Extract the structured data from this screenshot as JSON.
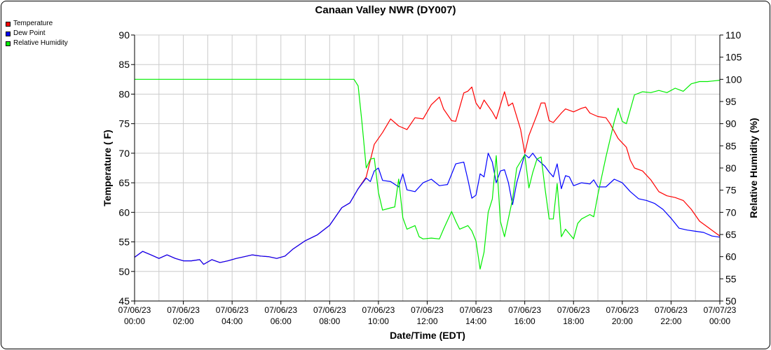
{
  "chart_data": {
    "type": "line",
    "title": "Canaan Valley NWR (DY007)",
    "xlabel": "Date/Time (EDT)",
    "ylabel": "Temperature ( F)",
    "y2label": "Relative Humidity (%)",
    "xlim": [
      "2023-07-06 00:00",
      "2023-07-07 00:00"
    ],
    "ylim": [
      45,
      90
    ],
    "y2lim": [
      50,
      110
    ],
    "y_ticks": [
      45,
      50,
      55,
      60,
      65,
      70,
      75,
      80,
      85,
      90
    ],
    "y2_ticks": [
      50,
      55,
      60,
      65,
      70,
      75,
      80,
      85,
      90,
      95,
      100,
      105,
      110
    ],
    "x_tick_labels": [
      {
        "date": "07/06/23",
        "time": "00:00",
        "hour": 0
      },
      {
        "date": "07/06/23",
        "time": "02:00",
        "hour": 2
      },
      {
        "date": "07/06/23",
        "time": "04:00",
        "hour": 4
      },
      {
        "date": "07/06/23",
        "time": "06:00",
        "hour": 6
      },
      {
        "date": "07/06/23",
        "time": "08:00",
        "hour": 8
      },
      {
        "date": "07/06/23",
        "time": "10:00",
        "hour": 10
      },
      {
        "date": "07/06/23",
        "time": "12:00",
        "hour": 12
      },
      {
        "date": "07/06/23",
        "time": "14:00",
        "hour": 14
      },
      {
        "date": "07/06/23",
        "time": "16:00",
        "hour": 16
      },
      {
        "date": "07/06/23",
        "time": "18:00",
        "hour": 18
      },
      {
        "date": "07/06/23",
        "time": "20:00",
        "hour": 20
      },
      {
        "date": "07/06/23",
        "time": "22:00",
        "hour": 22
      },
      {
        "date": "07/07/23",
        "time": "00:00",
        "hour": 24
      }
    ],
    "grid": true,
    "legend_position": "top-left",
    "series": [
      {
        "name": "Temperature",
        "color": "#ff0000",
        "axis": "left",
        "points": [
          [
            0.0,
            52.4
          ],
          [
            0.33,
            53.4
          ],
          [
            0.67,
            52.8
          ],
          [
            1.0,
            52.2
          ],
          [
            1.33,
            52.8
          ],
          [
            1.67,
            52.2
          ],
          [
            2.0,
            51.8
          ],
          [
            2.33,
            51.8
          ],
          [
            2.67,
            52.0
          ],
          [
            2.83,
            51.2
          ],
          [
            3.17,
            52.0
          ],
          [
            3.5,
            51.5
          ],
          [
            3.83,
            51.8
          ],
          [
            4.17,
            52.2
          ],
          [
            4.5,
            52.5
          ],
          [
            4.83,
            52.8
          ],
          [
            5.17,
            52.6
          ],
          [
            5.5,
            52.5
          ],
          [
            5.83,
            52.2
          ],
          [
            6.17,
            52.6
          ],
          [
            6.5,
            53.8
          ],
          [
            7.0,
            55.2
          ],
          [
            7.5,
            56.2
          ],
          [
            8.0,
            57.8
          ],
          [
            8.5,
            60.8
          ],
          [
            8.83,
            61.6
          ],
          [
            9.17,
            64.0
          ],
          [
            9.5,
            66.0
          ],
          [
            9.83,
            71.5
          ],
          [
            10.17,
            73.5
          ],
          [
            10.5,
            75.8
          ],
          [
            10.83,
            74.6
          ],
          [
            11.17,
            74.0
          ],
          [
            11.5,
            76.0
          ],
          [
            11.83,
            75.8
          ],
          [
            12.17,
            78.2
          ],
          [
            12.5,
            79.5
          ],
          [
            12.67,
            77.5
          ],
          [
            13.0,
            75.5
          ],
          [
            13.17,
            75.4
          ],
          [
            13.5,
            80.2
          ],
          [
            13.67,
            80.5
          ],
          [
            13.83,
            81.2
          ],
          [
            14.0,
            78.5
          ],
          [
            14.17,
            77.5
          ],
          [
            14.33,
            79.0
          ],
          [
            14.67,
            77.0
          ],
          [
            14.83,
            75.8
          ],
          [
            15.17,
            80.4
          ],
          [
            15.33,
            78.0
          ],
          [
            15.5,
            78.5
          ],
          [
            15.83,
            74.0
          ],
          [
            16.0,
            70.0
          ],
          [
            16.17,
            73.0
          ],
          [
            16.5,
            76.5
          ],
          [
            16.67,
            78.5
          ],
          [
            16.83,
            78.5
          ],
          [
            17.0,
            75.5
          ],
          [
            17.17,
            75.2
          ],
          [
            17.5,
            76.8
          ],
          [
            17.67,
            77.5
          ],
          [
            18.0,
            77.0
          ],
          [
            18.33,
            77.6
          ],
          [
            18.5,
            77.8
          ],
          [
            18.67,
            76.8
          ],
          [
            19.0,
            76.2
          ],
          [
            19.33,
            76.0
          ],
          [
            19.5,
            75.0
          ],
          [
            19.83,
            72.5
          ],
          [
            20.17,
            71.0
          ],
          [
            20.33,
            68.8
          ],
          [
            20.5,
            67.5
          ],
          [
            20.83,
            67.0
          ],
          [
            21.17,
            65.5
          ],
          [
            21.5,
            63.5
          ],
          [
            21.83,
            62.8
          ],
          [
            22.17,
            62.5
          ],
          [
            22.5,
            62.0
          ],
          [
            22.83,
            60.5
          ],
          [
            23.17,
            58.5
          ],
          [
            23.5,
            57.5
          ],
          [
            23.83,
            56.5
          ],
          [
            24.0,
            56.0
          ]
        ]
      },
      {
        "name": "Dew Point",
        "color": "#0000ff",
        "axis": "left",
        "points": [
          [
            0.0,
            52.4
          ],
          [
            0.33,
            53.4
          ],
          [
            0.67,
            52.8
          ],
          [
            1.0,
            52.2
          ],
          [
            1.33,
            52.8
          ],
          [
            1.67,
            52.2
          ],
          [
            2.0,
            51.8
          ],
          [
            2.33,
            51.8
          ],
          [
            2.67,
            52.0
          ],
          [
            2.83,
            51.2
          ],
          [
            3.17,
            52.0
          ],
          [
            3.5,
            51.5
          ],
          [
            3.83,
            51.8
          ],
          [
            4.17,
            52.2
          ],
          [
            4.5,
            52.5
          ],
          [
            4.83,
            52.8
          ],
          [
            5.17,
            52.6
          ],
          [
            5.5,
            52.5
          ],
          [
            5.83,
            52.2
          ],
          [
            6.17,
            52.6
          ],
          [
            6.5,
            53.8
          ],
          [
            7.0,
            55.2
          ],
          [
            7.5,
            56.2
          ],
          [
            8.0,
            57.8
          ],
          [
            8.5,
            60.8
          ],
          [
            8.83,
            61.6
          ],
          [
            9.17,
            64.0
          ],
          [
            9.5,
            65.8
          ],
          [
            9.67,
            65.2
          ],
          [
            9.83,
            67.0
          ],
          [
            10.0,
            67.5
          ],
          [
            10.17,
            65.4
          ],
          [
            10.5,
            65.2
          ],
          [
            10.83,
            64.3
          ],
          [
            11.0,
            66.5
          ],
          [
            11.17,
            63.8
          ],
          [
            11.5,
            63.5
          ],
          [
            11.83,
            65.0
          ],
          [
            12.17,
            65.6
          ],
          [
            12.5,
            64.5
          ],
          [
            12.83,
            64.7
          ],
          [
            13.17,
            68.2
          ],
          [
            13.5,
            68.5
          ],
          [
            13.67,
            65.5
          ],
          [
            13.83,
            62.4
          ],
          [
            14.0,
            62.9
          ],
          [
            14.17,
            66.5
          ],
          [
            14.33,
            66.0
          ],
          [
            14.5,
            70.0
          ],
          [
            14.67,
            68.5
          ],
          [
            14.83,
            65.0
          ],
          [
            15.0,
            67.0
          ],
          [
            15.17,
            67.2
          ],
          [
            15.33,
            65.0
          ],
          [
            15.5,
            61.3
          ],
          [
            15.67,
            65.0
          ],
          [
            16.0,
            69.8
          ],
          [
            16.17,
            69.2
          ],
          [
            16.33,
            70.0
          ],
          [
            16.5,
            69.0
          ],
          [
            16.83,
            67.8
          ],
          [
            17.0,
            66.8
          ],
          [
            17.17,
            66.0
          ],
          [
            17.33,
            68.2
          ],
          [
            17.5,
            64.0
          ],
          [
            17.67,
            66.2
          ],
          [
            17.83,
            66.0
          ],
          [
            18.0,
            64.5
          ],
          [
            18.33,
            65.0
          ],
          [
            18.67,
            64.8
          ],
          [
            18.83,
            65.5
          ],
          [
            19.0,
            64.3
          ],
          [
            19.33,
            64.3
          ],
          [
            19.67,
            65.6
          ],
          [
            20.0,
            65.0
          ],
          [
            20.33,
            63.5
          ],
          [
            20.67,
            62.3
          ],
          [
            21.0,
            62.0
          ],
          [
            21.33,
            61.5
          ],
          [
            21.67,
            60.5
          ],
          [
            22.0,
            59.0
          ],
          [
            22.33,
            57.3
          ],
          [
            22.67,
            57.0
          ],
          [
            23.0,
            56.8
          ],
          [
            23.33,
            56.6
          ],
          [
            23.67,
            56.0
          ],
          [
            24.0,
            55.8
          ]
        ]
      },
      {
        "name": "Relative Humidity",
        "color": "#00ee00",
        "axis": "right",
        "points": [
          [
            0.0,
            100
          ],
          [
            9.0,
            100
          ],
          [
            9.17,
            98.5
          ],
          [
            9.33,
            90.0
          ],
          [
            9.5,
            80.0
          ],
          [
            9.67,
            82.0
          ],
          [
            9.83,
            82.2
          ],
          [
            10.0,
            74.5
          ],
          [
            10.17,
            70.5
          ],
          [
            10.5,
            71.0
          ],
          [
            10.67,
            71.2
          ],
          [
            10.83,
            77.5
          ],
          [
            11.0,
            68.8
          ],
          [
            11.17,
            66.2
          ],
          [
            11.5,
            67.0
          ],
          [
            11.67,
            64.5
          ],
          [
            11.83,
            64.0
          ],
          [
            12.17,
            64.2
          ],
          [
            12.5,
            64.0
          ],
          [
            12.67,
            66.2
          ],
          [
            13.0,
            70.2
          ],
          [
            13.17,
            68.0
          ],
          [
            13.33,
            66.2
          ],
          [
            13.67,
            67.0
          ],
          [
            13.83,
            65.8
          ],
          [
            14.0,
            63.5
          ],
          [
            14.17,
            57.2
          ],
          [
            14.33,
            61.0
          ],
          [
            14.5,
            70.0
          ],
          [
            14.67,
            73.0
          ],
          [
            14.83,
            82.8
          ],
          [
            15.0,
            68.0
          ],
          [
            15.17,
            64.5
          ],
          [
            15.5,
            73.0
          ],
          [
            15.67,
            80.0
          ],
          [
            16.0,
            83.0
          ],
          [
            16.17,
            75.5
          ],
          [
            16.33,
            79.0
          ],
          [
            16.5,
            82.0
          ],
          [
            16.67,
            82.5
          ],
          [
            16.83,
            75.5
          ],
          [
            17.0,
            68.5
          ],
          [
            17.17,
            68.5
          ],
          [
            17.33,
            76.5
          ],
          [
            17.5,
            64.5
          ],
          [
            17.67,
            66.2
          ],
          [
            18.0,
            64.0
          ],
          [
            18.17,
            67.5
          ],
          [
            18.33,
            68.5
          ],
          [
            18.67,
            69.5
          ],
          [
            18.83,
            69.0
          ],
          [
            19.0,
            74.0
          ],
          [
            19.33,
            82.5
          ],
          [
            19.67,
            90.5
          ],
          [
            19.83,
            93.5
          ],
          [
            20.0,
            90.5
          ],
          [
            20.17,
            90.0
          ],
          [
            20.5,
            96.5
          ],
          [
            20.83,
            97.2
          ],
          [
            21.17,
            97.0
          ],
          [
            21.5,
            97.5
          ],
          [
            21.83,
            97.0
          ],
          [
            22.17,
            98.0
          ],
          [
            22.5,
            97.3
          ],
          [
            22.83,
            99.0
          ],
          [
            23.17,
            99.5
          ],
          [
            23.5,
            99.5
          ],
          [
            24.0,
            99.8
          ]
        ]
      }
    ]
  }
}
